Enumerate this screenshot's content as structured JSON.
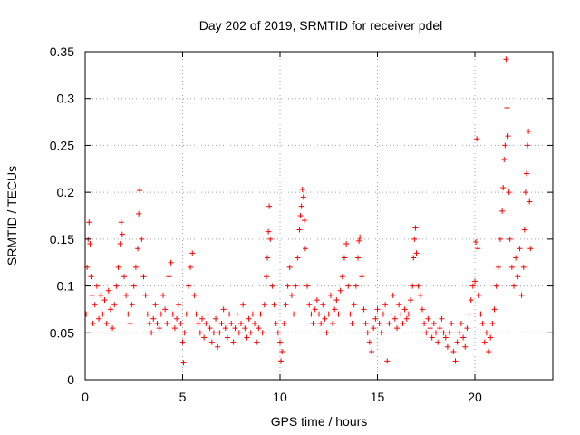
{
  "chart_data": {
    "type": "scatter",
    "title": "Day 202 of 2019, SRMTID for receiver pdel",
    "xlabel": "GPS time / hours",
    "ylabel": "SRMTID / TECUs",
    "xlim": [
      0,
      24
    ],
    "ylim": [
      0,
      0.35
    ],
    "x_ticks": [
      0,
      5,
      10,
      15,
      20
    ],
    "y_ticks": [
      0,
      0.05,
      0.1,
      0.15,
      0.2,
      0.25,
      0.3,
      0.35
    ],
    "x_tick_labels": [
      "0",
      "5",
      "10",
      "15",
      "20"
    ],
    "y_tick_labels": [
      "0",
      "0.05",
      "0.1",
      "0.15",
      "0.2",
      "0.25",
      "0.3",
      "0.35"
    ],
    "grid": true,
    "marker": "+",
    "color": "#ff0000",
    "series": [
      {
        "name": "pdel",
        "points": [
          [
            0.05,
            0.07
          ],
          [
            0.1,
            0.12
          ],
          [
            0.15,
            0.15
          ],
          [
            0.2,
            0.168
          ],
          [
            0.25,
            0.145
          ],
          [
            0.3,
            0.11
          ],
          [
            0.35,
            0.09
          ],
          [
            0.4,
            0.06
          ],
          [
            0.5,
            0.08
          ],
          [
            0.6,
            0.1
          ],
          [
            0.7,
            0.065
          ],
          [
            0.8,
            0.09
          ],
          [
            0.9,
            0.07
          ],
          [
            1.0,
            0.085
          ],
          [
            1.1,
            0.06
          ],
          [
            1.2,
            0.095
          ],
          [
            1.3,
            0.075
          ],
          [
            1.4,
            0.055
          ],
          [
            1.5,
            0.08
          ],
          [
            1.6,
            0.1
          ],
          [
            1.7,
            0.12
          ],
          [
            1.8,
            0.145
          ],
          [
            1.85,
            0.168
          ],
          [
            1.9,
            0.155
          ],
          [
            2.0,
            0.11
          ],
          [
            2.1,
            0.09
          ],
          [
            2.2,
            0.07
          ],
          [
            2.3,
            0.06
          ],
          [
            2.4,
            0.08
          ],
          [
            2.5,
            0.1
          ],
          [
            2.6,
            0.12
          ],
          [
            2.7,
            0.14
          ],
          [
            2.75,
            0.177
          ],
          [
            2.8,
            0.202
          ],
          [
            2.9,
            0.15
          ],
          [
            3.0,
            0.11
          ],
          [
            3.1,
            0.09
          ],
          [
            3.2,
            0.07
          ],
          [
            3.3,
            0.06
          ],
          [
            3.4,
            0.05
          ],
          [
            3.5,
            0.065
          ],
          [
            3.6,
            0.08
          ],
          [
            3.7,
            0.06
          ],
          [
            3.8,
            0.055
          ],
          [
            3.9,
            0.07
          ],
          [
            4.0,
            0.09
          ],
          [
            4.1,
            0.075
          ],
          [
            4.2,
            0.06
          ],
          [
            4.3,
            0.11
          ],
          [
            4.4,
            0.125
          ],
          [
            4.5,
            0.07
          ],
          [
            4.6,
            0.055
          ],
          [
            4.7,
            0.065
          ],
          [
            4.8,
            0.08
          ],
          [
            4.9,
            0.06
          ],
          [
            5.0,
            0.04
          ],
          [
            5.05,
            0.018
          ],
          [
            5.1,
            0.05
          ],
          [
            5.2,
            0.07
          ],
          [
            5.3,
            0.1
          ],
          [
            5.4,
            0.12
          ],
          [
            5.5,
            0.135
          ],
          [
            5.6,
            0.09
          ],
          [
            5.7,
            0.07
          ],
          [
            5.8,
            0.06
          ],
          [
            5.9,
            0.05
          ],
          [
            6.0,
            0.065
          ],
          [
            6.1,
            0.045
          ],
          [
            6.2,
            0.06
          ],
          [
            6.3,
            0.07
          ],
          [
            6.4,
            0.055
          ],
          [
            6.5,
            0.04
          ],
          [
            6.6,
            0.05
          ],
          [
            6.7,
            0.065
          ],
          [
            6.8,
            0.035
          ],
          [
            6.9,
            0.05
          ],
          [
            7.0,
            0.06
          ],
          [
            7.1,
            0.075
          ],
          [
            7.2,
            0.055
          ],
          [
            7.3,
            0.045
          ],
          [
            7.4,
            0.07
          ],
          [
            7.5,
            0.06
          ],
          [
            7.6,
            0.04
          ],
          [
            7.7,
            0.055
          ],
          [
            7.8,
            0.07
          ],
          [
            7.9,
            0.05
          ],
          [
            8.0,
            0.06
          ],
          [
            8.1,
            0.08
          ],
          [
            8.2,
            0.055
          ],
          [
            8.3,
            0.045
          ],
          [
            8.4,
            0.065
          ],
          [
            8.5,
            0.05
          ],
          [
            8.6,
            0.07
          ],
          [
            8.7,
            0.06
          ],
          [
            8.8,
            0.04
          ],
          [
            8.9,
            0.055
          ],
          [
            9.0,
            0.07
          ],
          [
            9.1,
            0.05
          ],
          [
            9.2,
            0.08
          ],
          [
            9.3,
            0.11
          ],
          [
            9.35,
            0.13
          ],
          [
            9.4,
            0.158
          ],
          [
            9.45,
            0.185
          ],
          [
            9.5,
            0.15
          ],
          [
            9.6,
            0.1
          ],
          [
            9.7,
            0.08
          ],
          [
            9.8,
            0.06
          ],
          [
            9.9,
            0.05
          ],
          [
            10.0,
            0.04
          ],
          [
            10.05,
            0.02
          ],
          [
            10.1,
            0.03
          ],
          [
            10.2,
            0.06
          ],
          [
            10.3,
            0.08
          ],
          [
            10.4,
            0.1
          ],
          [
            10.5,
            0.12
          ],
          [
            10.6,
            0.09
          ],
          [
            10.7,
            0.07
          ],
          [
            10.8,
            0.1
          ],
          [
            10.9,
            0.13
          ],
          [
            11.0,
            0.16
          ],
          [
            11.05,
            0.175
          ],
          [
            11.1,
            0.185
          ],
          [
            11.15,
            0.203
          ],
          [
            11.2,
            0.195
          ],
          [
            11.25,
            0.17
          ],
          [
            11.3,
            0.14
          ],
          [
            11.4,
            0.1
          ],
          [
            11.5,
            0.08
          ],
          [
            11.6,
            0.07
          ],
          [
            11.7,
            0.06
          ],
          [
            11.8,
            0.075
          ],
          [
            11.9,
            0.085
          ],
          [
            12.0,
            0.07
          ],
          [
            12.1,
            0.06
          ],
          [
            12.2,
            0.08
          ],
          [
            12.3,
            0.065
          ],
          [
            12.4,
            0.05
          ],
          [
            12.5,
            0.07
          ],
          [
            12.6,
            0.09
          ],
          [
            12.7,
            0.06
          ],
          [
            12.8,
            0.075
          ],
          [
            12.9,
            0.085
          ],
          [
            13.0,
            0.07
          ],
          [
            13.1,
            0.095
          ],
          [
            13.2,
            0.11
          ],
          [
            13.3,
            0.13
          ],
          [
            13.4,
            0.145
          ],
          [
            13.5,
            0.1
          ],
          [
            13.6,
            0.07
          ],
          [
            13.7,
            0.06
          ],
          [
            13.8,
            0.08
          ],
          [
            13.9,
            0.1
          ],
          [
            14.0,
            0.13
          ],
          [
            14.05,
            0.148
          ],
          [
            14.1,
            0.152
          ],
          [
            14.2,
            0.11
          ],
          [
            14.3,
            0.075
          ],
          [
            14.4,
            0.06
          ],
          [
            14.5,
            0.05
          ],
          [
            14.6,
            0.04
          ],
          [
            14.7,
            0.03
          ],
          [
            14.8,
            0.055
          ],
          [
            14.9,
            0.065
          ],
          [
            15.0,
            0.075
          ],
          [
            15.1,
            0.06
          ],
          [
            15.2,
            0.05
          ],
          [
            15.3,
            0.07
          ],
          [
            15.4,
            0.08
          ],
          [
            15.5,
            0.02
          ],
          [
            15.6,
            0.06
          ],
          [
            15.7,
            0.07
          ],
          [
            15.8,
            0.09
          ],
          [
            15.9,
            0.065
          ],
          [
            16.0,
            0.055
          ],
          [
            16.1,
            0.08
          ],
          [
            16.2,
            0.07
          ],
          [
            16.3,
            0.06
          ],
          [
            16.4,
            0.075
          ],
          [
            16.5,
            0.065
          ],
          [
            16.6,
            0.07
          ],
          [
            16.7,
            0.085
          ],
          [
            16.8,
            0.1
          ],
          [
            16.85,
            0.13
          ],
          [
            16.9,
            0.15
          ],
          [
            16.95,
            0.162
          ],
          [
            17.0,
            0.135
          ],
          [
            17.1,
            0.1
          ],
          [
            17.2,
            0.09
          ],
          [
            17.3,
            0.075
          ],
          [
            17.4,
            0.06
          ],
          [
            17.5,
            0.05
          ],
          [
            17.6,
            0.065
          ],
          [
            17.7,
            0.055
          ],
          [
            17.8,
            0.045
          ],
          [
            17.9,
            0.06
          ],
          [
            18.0,
            0.05
          ],
          [
            18.1,
            0.04
          ],
          [
            18.2,
            0.055
          ],
          [
            18.3,
            0.065
          ],
          [
            18.4,
            0.05
          ],
          [
            18.5,
            0.045
          ],
          [
            18.6,
            0.035
          ],
          [
            18.7,
            0.05
          ],
          [
            18.8,
            0.06
          ],
          [
            18.9,
            0.03
          ],
          [
            19.0,
            0.02
          ],
          [
            19.1,
            0.04
          ],
          [
            19.2,
            0.05
          ],
          [
            19.3,
            0.06
          ],
          [
            19.4,
            0.045
          ],
          [
            19.5,
            0.035
          ],
          [
            19.6,
            0.055
          ],
          [
            19.7,
            0.07
          ],
          [
            19.8,
            0.085
          ],
          [
            19.9,
            0.1
          ],
          [
            20.0,
            0.105
          ],
          [
            20.05,
            0.147
          ],
          [
            20.1,
            0.257
          ],
          [
            20.15,
            0.14
          ],
          [
            20.2,
            0.09
          ],
          [
            20.3,
            0.07
          ],
          [
            20.4,
            0.06
          ],
          [
            20.5,
            0.04
          ],
          [
            20.6,
            0.05
          ],
          [
            20.7,
            0.03
          ],
          [
            20.8,
            0.045
          ],
          [
            20.9,
            0.06
          ],
          [
            21.0,
            0.075
          ],
          [
            21.1,
            0.1
          ],
          [
            21.2,
            0.12
          ],
          [
            21.3,
            0.15
          ],
          [
            21.4,
            0.18
          ],
          [
            21.45,
            0.205
          ],
          [
            21.5,
            0.235
          ],
          [
            21.55,
            0.25
          ],
          [
            21.6,
            0.342
          ],
          [
            21.65,
            0.29
          ],
          [
            21.7,
            0.26
          ],
          [
            21.75,
            0.2
          ],
          [
            21.8,
            0.15
          ],
          [
            21.9,
            0.12
          ],
          [
            22.0,
            0.1
          ],
          [
            22.1,
            0.13
          ],
          [
            22.2,
            0.11
          ],
          [
            22.3,
            0.14
          ],
          [
            22.4,
            0.09
          ],
          [
            22.5,
            0.12
          ],
          [
            22.55,
            0.16
          ],
          [
            22.6,
            0.2
          ],
          [
            22.65,
            0.22
          ],
          [
            22.7,
            0.25
          ],
          [
            22.75,
            0.265
          ],
          [
            22.8,
            0.19
          ],
          [
            22.85,
            0.14
          ]
        ]
      }
    ]
  }
}
